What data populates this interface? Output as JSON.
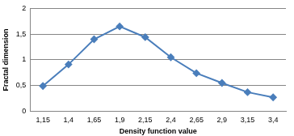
{
  "chart_data": {
    "type": "line",
    "x_label": "Density function value",
    "y_label": "Fractal dimension",
    "categories": [
      "1,15",
      "1,4",
      "1,65",
      "1,9",
      "2,15",
      "2,4",
      "2,65",
      "2,9",
      "3,15",
      "3,4"
    ],
    "values": [
      0.49,
      0.91,
      1.4,
      1.65,
      1.44,
      1.05,
      0.74,
      0.55,
      0.37,
      0.27
    ],
    "color": "#4a7ebb",
    "marker": "diamond",
    "line_style": "solid",
    "ylim": [
      0,
      2
    ],
    "yticks": [
      0,
      {
        "value": 0.5,
        "label": "0,5"
      },
      1,
      {
        "value": 1.5,
        "label": "1,5"
      },
      2
    ],
    "grid": true
  }
}
